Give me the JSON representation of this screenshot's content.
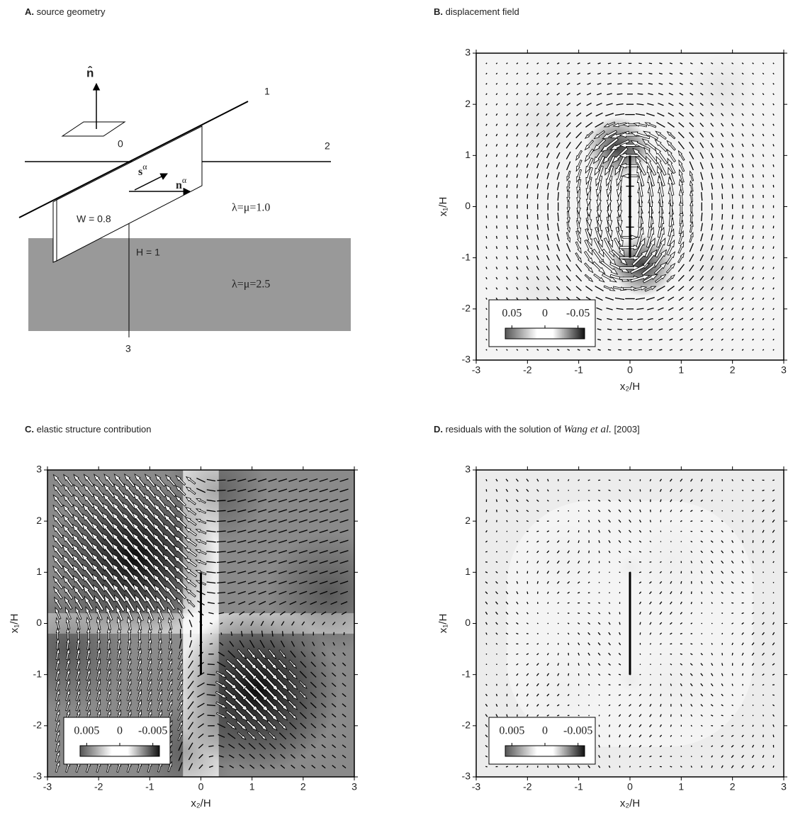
{
  "panelA": {
    "label": "A.",
    "text": "source geometry",
    "n_hat": "n̂",
    "axis1": "1",
    "origin": "0",
    "axis2": "2",
    "axis3": "3",
    "s_alpha": {
      "base": "s",
      "sup": "α"
    },
    "n_alpha": {
      "base": "n",
      "sup": "α"
    },
    "upper_layer": "λ=μ=1.0",
    "lower_layer": "λ=μ=2.5",
    "width": "W = 0.8",
    "depth": "H = 1"
  },
  "panels": [
    {
      "label": "B.",
      "text": "displacement field",
      "xlabel": "x₂/H",
      "ylabel": "x₁/H",
      "xlim": [
        -3,
        3
      ],
      "ylim": [
        -3,
        3
      ],
      "xticks": [
        -3,
        -2,
        -1,
        0,
        1,
        2,
        3
      ],
      "yticks": [
        -3,
        -2,
        -1,
        0,
        1,
        2,
        3
      ],
      "colorbar_ticks": [
        0.05,
        0,
        -0.05
      ],
      "clim": [
        0.06,
        -0.06
      ]
    },
    {
      "label": "C.",
      "text": "elastic structure contribution",
      "xlabel": "x₂/H",
      "ylabel": "x₁/H",
      "xlim": [
        -3,
        3
      ],
      "ylim": [
        -3,
        3
      ],
      "xticks": [
        -3,
        -2,
        -1,
        0,
        1,
        2,
        3
      ],
      "yticks": [
        -3,
        -2,
        -1,
        0,
        1,
        2,
        3
      ],
      "colorbar_ticks": [
        0.005,
        0,
        -0.005
      ],
      "clim": [
        0.006,
        -0.006
      ]
    },
    {
      "label": "D.",
      "text": "residuals with the solution of ",
      "text_italic": "Wang et al.",
      "text_end": " [2003]",
      "xlabel": "x₂/H",
      "ylabel": "x₁/H",
      "xlim": [
        -3,
        3
      ],
      "ylim": [
        -3,
        3
      ],
      "xticks": [
        -3,
        -2,
        -1,
        0,
        1,
        2,
        3
      ],
      "yticks": [
        -3,
        -2,
        -1,
        0,
        1,
        2,
        3
      ],
      "colorbar_ticks": [
        0.005,
        0,
        -0.005
      ],
      "clim": [
        0.006,
        -0.006
      ]
    }
  ]
}
